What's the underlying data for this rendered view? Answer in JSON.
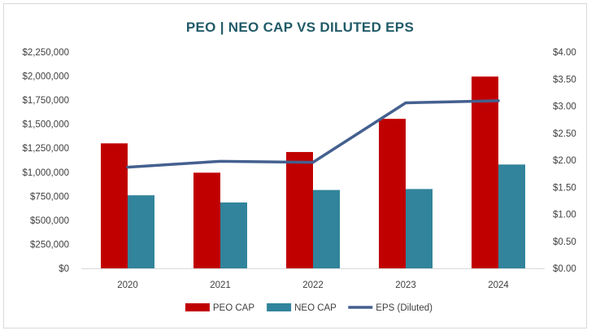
{
  "chart_data": {
    "type": "bar",
    "title": "PEO | NEO CAP VS DILUTED EPS",
    "categories": [
      "2020",
      "2021",
      "2022",
      "2023",
      "2024"
    ],
    "series": [
      {
        "name": "PEO CAP",
        "kind": "bar",
        "axis": "left",
        "color": "#c00000",
        "values": [
          1300000,
          995000,
          1210000,
          1555000,
          1995000
        ]
      },
      {
        "name": "NEO CAP",
        "kind": "bar",
        "axis": "left",
        "color": "#31849b",
        "values": [
          760000,
          685000,
          815000,
          825000,
          1080000
        ]
      },
      {
        "name": "EPS (Diluted)",
        "kind": "line",
        "axis": "right",
        "color": "#44608f",
        "values": [
          1.87,
          1.98,
          1.96,
          3.06,
          3.1
        ]
      }
    ],
    "y_left": {
      "ylim": [
        0,
        2250000
      ],
      "ticks": [
        "$0",
        "$250,000",
        "$500,000",
        "$750,000",
        "$1,000,000",
        "$1,250,000",
        "$1,500,000",
        "$1,750,000",
        "$2,000,000",
        "$2,250,000"
      ]
    },
    "y_right": {
      "ylim": [
        0,
        4.0
      ],
      "ticks": [
        "$0.00",
        "$0.50",
        "$1.00",
        "$1.50",
        "$2.00",
        "$2.50",
        "$3.00",
        "$3.50",
        "$4.00"
      ]
    },
    "grid": false,
    "legend_position": "bottom"
  }
}
